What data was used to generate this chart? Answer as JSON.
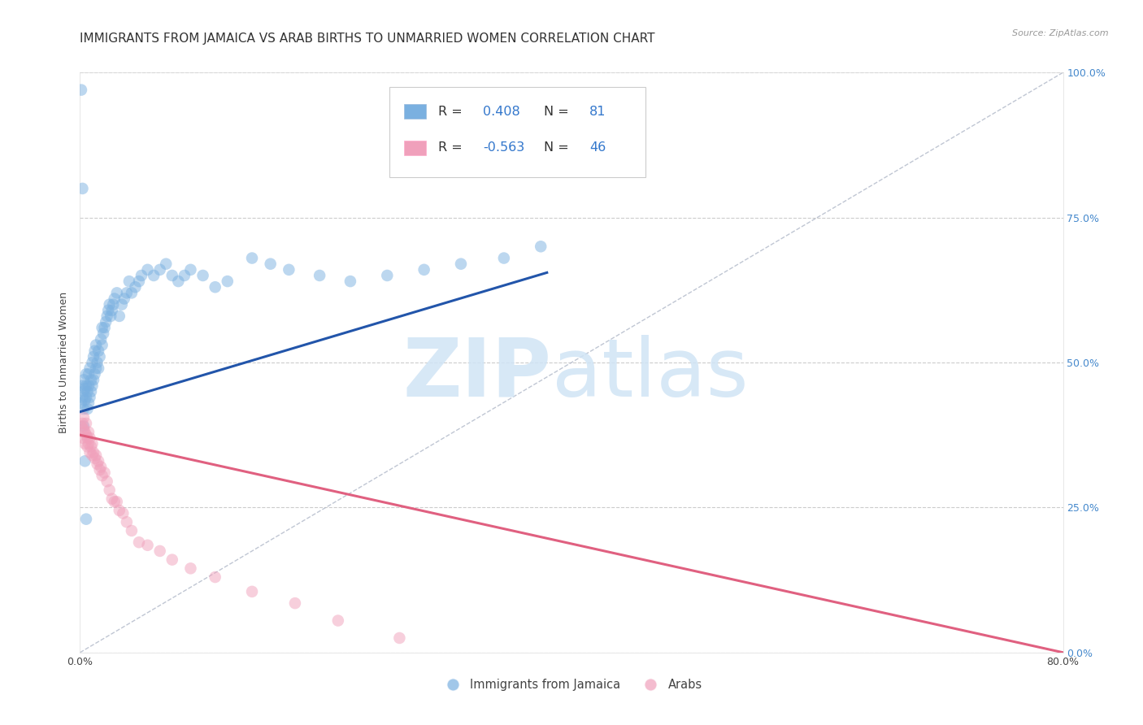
{
  "title": "IMMIGRANTS FROM JAMAICA VS ARAB BIRTHS TO UNMARRIED WOMEN CORRELATION CHART",
  "source": "Source: ZipAtlas.com",
  "ylabel": "Births to Unmarried Women",
  "xlim": [
    0.0,
    0.8
  ],
  "ylim": [
    0.0,
    1.0
  ],
  "x_tick_positions": [
    0.0,
    0.1,
    0.2,
    0.3,
    0.4,
    0.5,
    0.6,
    0.7,
    0.8
  ],
  "y_tick_positions": [
    0.0,
    0.25,
    0.5,
    0.75,
    1.0
  ],
  "grid_color": "#cccccc",
  "background_color": "#ffffff",
  "blue_color": "#7ab0e0",
  "pink_color": "#f0a0bb",
  "blue_line_color": "#2255aa",
  "pink_line_color": "#e06080",
  "ref_line_color": "#b0b8c8",
  "blue_trend_x0": 0.0,
  "blue_trend_y0": 0.415,
  "blue_trend_x1": 0.38,
  "blue_trend_y1": 0.655,
  "pink_trend_x0": 0.0,
  "pink_trend_y0": 0.375,
  "pink_trend_x1": 0.8,
  "pink_trend_y1": 0.0,
  "jamaica_x": [
    0.001,
    0.002,
    0.002,
    0.003,
    0.003,
    0.003,
    0.004,
    0.004,
    0.005,
    0.005,
    0.005,
    0.006,
    0.006,
    0.007,
    0.007,
    0.007,
    0.008,
    0.008,
    0.009,
    0.009,
    0.01,
    0.01,
    0.011,
    0.011,
    0.012,
    0.012,
    0.013,
    0.013,
    0.014,
    0.015,
    0.015,
    0.016,
    0.017,
    0.018,
    0.018,
    0.019,
    0.02,
    0.021,
    0.022,
    0.023,
    0.024,
    0.025,
    0.026,
    0.027,
    0.028,
    0.03,
    0.032,
    0.034,
    0.036,
    0.038,
    0.04,
    0.042,
    0.045,
    0.048,
    0.05,
    0.055,
    0.06,
    0.065,
    0.07,
    0.075,
    0.08,
    0.085,
    0.09,
    0.1,
    0.11,
    0.12,
    0.14,
    0.155,
    0.17,
    0.195,
    0.22,
    0.25,
    0.28,
    0.31,
    0.345,
    0.375,
    0.001,
    0.002,
    0.003,
    0.004,
    0.005
  ],
  "jamaica_y": [
    0.43,
    0.44,
    0.46,
    0.42,
    0.45,
    0.47,
    0.435,
    0.455,
    0.44,
    0.46,
    0.48,
    0.42,
    0.45,
    0.43,
    0.46,
    0.48,
    0.44,
    0.49,
    0.45,
    0.47,
    0.46,
    0.5,
    0.47,
    0.51,
    0.48,
    0.52,
    0.49,
    0.53,
    0.5,
    0.49,
    0.52,
    0.51,
    0.54,
    0.53,
    0.56,
    0.55,
    0.56,
    0.57,
    0.58,
    0.59,
    0.6,
    0.58,
    0.59,
    0.6,
    0.61,
    0.62,
    0.58,
    0.6,
    0.61,
    0.62,
    0.64,
    0.62,
    0.63,
    0.64,
    0.65,
    0.66,
    0.65,
    0.66,
    0.67,
    0.65,
    0.64,
    0.65,
    0.66,
    0.65,
    0.63,
    0.64,
    0.68,
    0.67,
    0.66,
    0.65,
    0.64,
    0.65,
    0.66,
    0.67,
    0.68,
    0.7,
    0.97,
    0.8,
    0.39,
    0.33,
    0.23
  ],
  "arabs_x": [
    0.001,
    0.002,
    0.002,
    0.003,
    0.003,
    0.004,
    0.004,
    0.005,
    0.005,
    0.006,
    0.006,
    0.007,
    0.007,
    0.008,
    0.008,
    0.009,
    0.01,
    0.01,
    0.011,
    0.012,
    0.013,
    0.014,
    0.015,
    0.016,
    0.017,
    0.018,
    0.02,
    0.022,
    0.024,
    0.026,
    0.028,
    0.03,
    0.032,
    0.035,
    0.038,
    0.042,
    0.048,
    0.055,
    0.065,
    0.075,
    0.09,
    0.11,
    0.14,
    0.175,
    0.21,
    0.26
  ],
  "arabs_y": [
    0.39,
    0.37,
    0.395,
    0.385,
    0.405,
    0.38,
    0.36,
    0.375,
    0.395,
    0.37,
    0.355,
    0.36,
    0.38,
    0.37,
    0.345,
    0.355,
    0.36,
    0.34,
    0.345,
    0.335,
    0.34,
    0.325,
    0.33,
    0.315,
    0.32,
    0.305,
    0.31,
    0.295,
    0.28,
    0.265,
    0.26,
    0.26,
    0.245,
    0.24,
    0.225,
    0.21,
    0.19,
    0.185,
    0.175,
    0.16,
    0.145,
    0.13,
    0.105,
    0.085,
    0.055,
    0.025
  ],
  "title_fontsize": 11,
  "axis_label_fontsize": 9,
  "tick_fontsize": 9,
  "source_fontsize": 8
}
